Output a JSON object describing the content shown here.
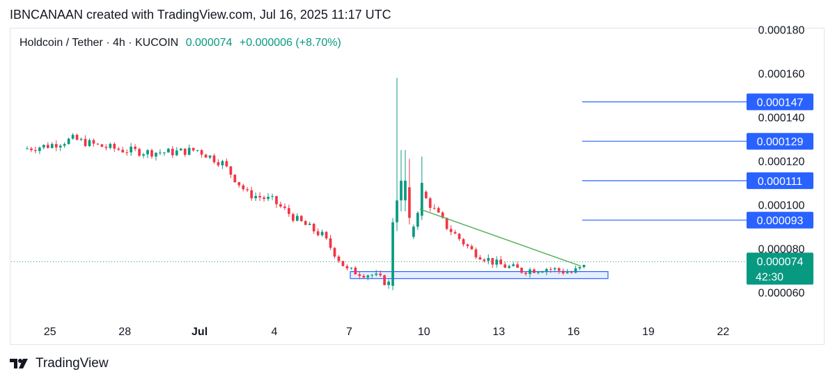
{
  "header": {
    "attribution": "IBNCANAAN created with TradingView.com, Jul 16, 2025 11:17 UTC"
  },
  "legend": {
    "symbol": "Holdcoin / Tether · 4h · KUCOIN",
    "last_price": "0.000074",
    "change": "+0.000006 (+8.70%)"
  },
  "footer": {
    "brand": "TradingView"
  },
  "chart_data": {
    "type": "candlestick",
    "x_ticks": [
      "25",
      "28",
      "Jul",
      "4",
      "7",
      "10",
      "13",
      "16",
      "19",
      "22"
    ],
    "y_ticks": [
      "0.000180",
      "0.000160",
      "0.000140",
      "0.000120",
      "0.000100",
      "0.000080",
      "0.000060"
    ],
    "ylim": [
      5e-05,
      0.000184
    ],
    "grid": false,
    "series_approx_close": [
      {
        "date": "Jun 24",
        "close": 0.000127
      },
      {
        "date": "Jun 25",
        "close": 0.00013
      },
      {
        "date": "Jun 26",
        "close": 0.000127
      },
      {
        "date": "Jun 27",
        "close": 0.000125
      },
      {
        "date": "Jun 28",
        "close": 0.000124
      },
      {
        "date": "Jun 29",
        "close": 0.000124
      },
      {
        "date": "Jun 30",
        "close": 0.000125
      },
      {
        "date": "Jul 1",
        "close": 0.000119
      },
      {
        "date": "Jul 2",
        "close": 0.000105
      },
      {
        "date": "Jul 3",
        "close": 0.000102
      },
      {
        "date": "Jul 4",
        "close": 9.3e-05
      },
      {
        "date": "Jul 5",
        "close": 8.6e-05
      },
      {
        "date": "Jul 6",
        "close": 7e-05
      },
      {
        "date": "Jul 7",
        "close": 6.8e-05
      },
      {
        "date": "Jul 8",
        "close": 6.2e-05
      },
      {
        "date": "Jul 9",
        "close": 0.000105
      },
      {
        "date": "Jul 10",
        "close": 9e-05
      },
      {
        "date": "Jul 11",
        "close": 7.9e-05
      },
      {
        "date": "Jul 12",
        "close": 7.3e-05
      },
      {
        "date": "Jul 13",
        "close": 7e-05
      },
      {
        "date": "Jul 14",
        "close": 7.1e-05
      },
      {
        "date": "Jul 15",
        "close": 6.9e-05
      },
      {
        "date": "Jul 16",
        "close": 7.4e-05
      }
    ],
    "spike_high": 0.000158,
    "current_price_label": "0.000074",
    "countdown_label": "42:30",
    "target_levels": [
      {
        "label": "0.000147",
        "value": 0.000147
      },
      {
        "label": "0.000129",
        "value": 0.000129
      },
      {
        "label": "0.000111",
        "value": 0.000111
      },
      {
        "label": "0.000093",
        "value": 9.3e-05
      }
    ],
    "support_zone": {
      "from": 6.63e-05,
      "to": 6.95e-05
    },
    "trendline": {
      "from": 9.8e-05,
      "to": 7.2e-05
    },
    "colors": {
      "up": "#089981",
      "down": "#f23645",
      "level_line": "#2962ff",
      "level_label_bg": "#2962ff",
      "price_label_bg": "#089981",
      "zone_fill": "#d6e4ff",
      "zone_border": "#2962ff",
      "trendline": "#4caf50",
      "text": "#131722"
    }
  }
}
